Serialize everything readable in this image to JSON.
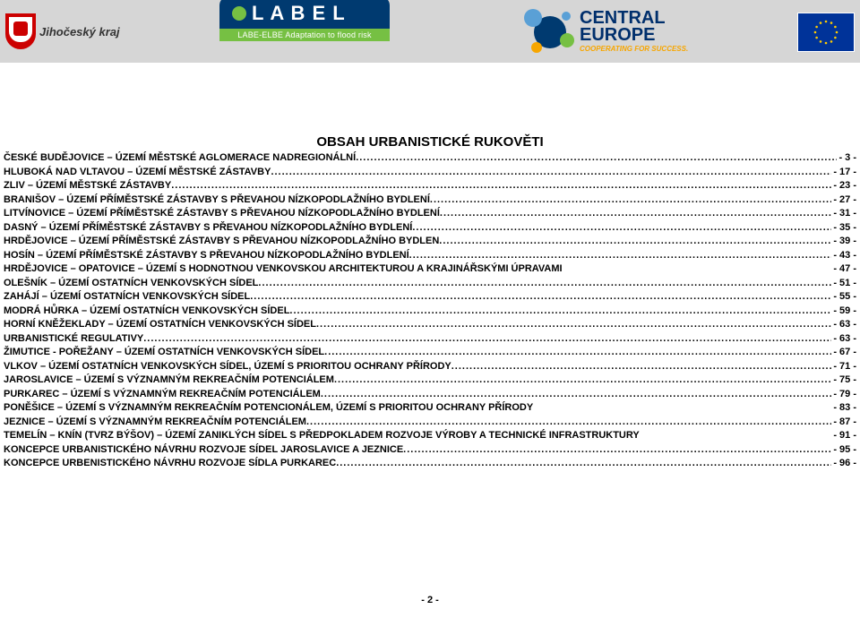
{
  "header": {
    "jihocesky": "Jihočeský kraj",
    "label_word": "L A B E L",
    "label_sub": "LABE-ELBE Adaptation to flood risk",
    "central_line1": "CENTRAL",
    "central_line2": "EUROPE",
    "central_tag": "COOPERATING FOR SUCCESS."
  },
  "title": "OBSAH URBANISTICKÉ RUKOVĚTI",
  "rows": [
    {
      "label": "ČESKÉ BUDĚJOVICE – ÚZEMÍ MĚSTSKÉ AGLOMERACE NADREGIONÁLNÍ ",
      "page": "- 3 -",
      "dots": true
    },
    {
      "label": "HLUBOKÁ NAD VLTAVOU – ÚZEMÍ MĚSTSKÉ ZÁSTAVBY ",
      "page": "- 17 -",
      "dots": true
    },
    {
      "label": "ZLIV – ÚZEMÍ MĚSTSKÉ ZÁSTAVBY ",
      "page": "- 23 -",
      "dots": true
    },
    {
      "label": "BRANIŠOV – ÚZEMÍ PŘÍMĚSTSKÉ ZÁSTAVBY S PŘEVAHOU NÍZKOPODLAŽNÍHO BYDLENÍ ",
      "page": "- 27 -",
      "dots": true
    },
    {
      "label": "LITVÍNOVICE – ÚZEMÍ PŘÍMĚSTSKÉ ZÁSTAVBY S PŘEVAHOU NÍZKOPODLAŽNÍHO BYDLENÍ ",
      "page": "- 31 -",
      "dots": true
    },
    {
      "label": "DASNÝ – ÚZEMÍ PŘÍMĚSTSKÉ ZÁSTAVBY S PŘEVAHOU NÍZKOPODLAŽNÍHO BYDLENÍ ",
      "page": "- 35 -",
      "dots": true
    },
    {
      "label": "HRDĚJOVICE – ÚZEMÍ PŘÍMĚSTSKÉ ZÁSTAVBY S PŘEVAHOU NÍZKOPODLAŽNÍHO BYDLEN",
      "page": "- 39 -",
      "dots": true
    },
    {
      "label": "HOSÍN – ÚZEMÍ PŘÍMĚSTSKÉ ZÁSTAVBY S PŘEVAHOU NÍZKOPODLAŽNÍHO BYDLENÍ",
      "page": "- 43 -",
      "dots": true
    },
    {
      "label": "HRDĚJOVICE – OPATOVICE – ÚZEMÍ S HODNOTNOU VENKOVSKOU ARCHITEKTUROU A KRAJINÁŘSKÝMI ÚPRAVAMI",
      "page": "- 47 -",
      "dots": false
    },
    {
      "label": "OLEŠNÍK – ÚZEMÍ OSTATNÍCH VENKOVSKÝCH SÍDEL ",
      "page": "- 51 -",
      "dots": true
    },
    {
      "label": "ZAHÁJÍ – ÚZEMÍ OSTATNÍCH VENKOVSKÝCH SÍDEL",
      "page": "- 55 -",
      "dots": true
    },
    {
      "label": "MODRÁ HŮRKA – ÚZEMÍ OSTATNÍCH VENKOVSKÝCH SÍDEL ",
      "page": "- 59 -",
      "dots": true
    },
    {
      "label": "HORNÍ KNĚŽEKLADY – ÚZEMÍ OSTATNÍCH VENKOVSKÝCH SÍDEL ",
      "page": "- 63 -",
      "dots": true
    },
    {
      "label": "URBANISTICKÉ REGULATIVY ",
      "page": "- 63 -",
      "dots": true
    },
    {
      "label": "ŽIMUTICE - POŘEŽANY – ÚZEMÍ OSTATNÍCH VENKOVSKÝCH SÍDEL ",
      "page": "- 67 -",
      "dots": true
    },
    {
      "label": "VLKOV – ÚZEMÍ OSTATNÍCH VENKOVSKÝCH SÍDEL, ÚZEMÍ S PRIORITOU OCHRANY PŘÍRODY ",
      "page": "- 71 -",
      "dots": true
    },
    {
      "label": "JAROSLAVICE – ÚZEMÍ S VÝZNAMNÝM REKREAČNÍM POTENCIÁLEM ",
      "page": "- 75 -",
      "dots": true
    },
    {
      "label": "PURKAREC – ÚZEMÍ S VÝZNAMNÝM REKREAČNÍM POTENCIÁLEM ",
      "page": "- 79 -",
      "dots": true
    },
    {
      "label": "PONĚŠICE – ÚZEMÍ S VÝZNAMNÝM REKREAČNÍM POTENCIONÁLEM, ÚZEMÍ S PRIORITOU OCHRANY PŘÍRODY",
      "page": "- 83 -",
      "dots": false
    },
    {
      "label": "JEZNICE – ÚZEMÍ S VÝZNAMNÝM REKREAČNÍM POTENCIÁLEM ",
      "page": "- 87 -",
      "dots": true
    },
    {
      "label": "TEMELÍN – KNÍN (TVRZ BÝŠOV) – ÚZEMÍ ZANIKLÝCH SÍDEL S PŘEDPOKLADEM ROZVOJE VÝROBY A TECHNICKÉ INFRASTRUKTURY",
      "page": "- 91 -",
      "dots": false
    },
    {
      "label": "KONCEPCE URBANISTICKÉHO NÁVRHU ROZVOJE SÍDEL JAROSLAVICE A JEZNICE ",
      "page": "- 95 -",
      "dots": true
    },
    {
      "label": "KONCEPCE URBENISTICKÉHO NÁVRHU ROZVOJE SÍDLA PURKAREC ",
      "page": "- 96 -",
      "dots": true
    }
  ],
  "footer": "- 2 -",
  "colors": {
    "band": "#d6d6d6",
    "text": "#000000",
    "eu_blue": "#003399",
    "eu_gold": "#ffcc00",
    "central_blue": "#002f6c",
    "central_orange": "#f7a600",
    "label_blue": "#003a70",
    "label_green": "#76c043",
    "jih_red": "#cc0000"
  }
}
